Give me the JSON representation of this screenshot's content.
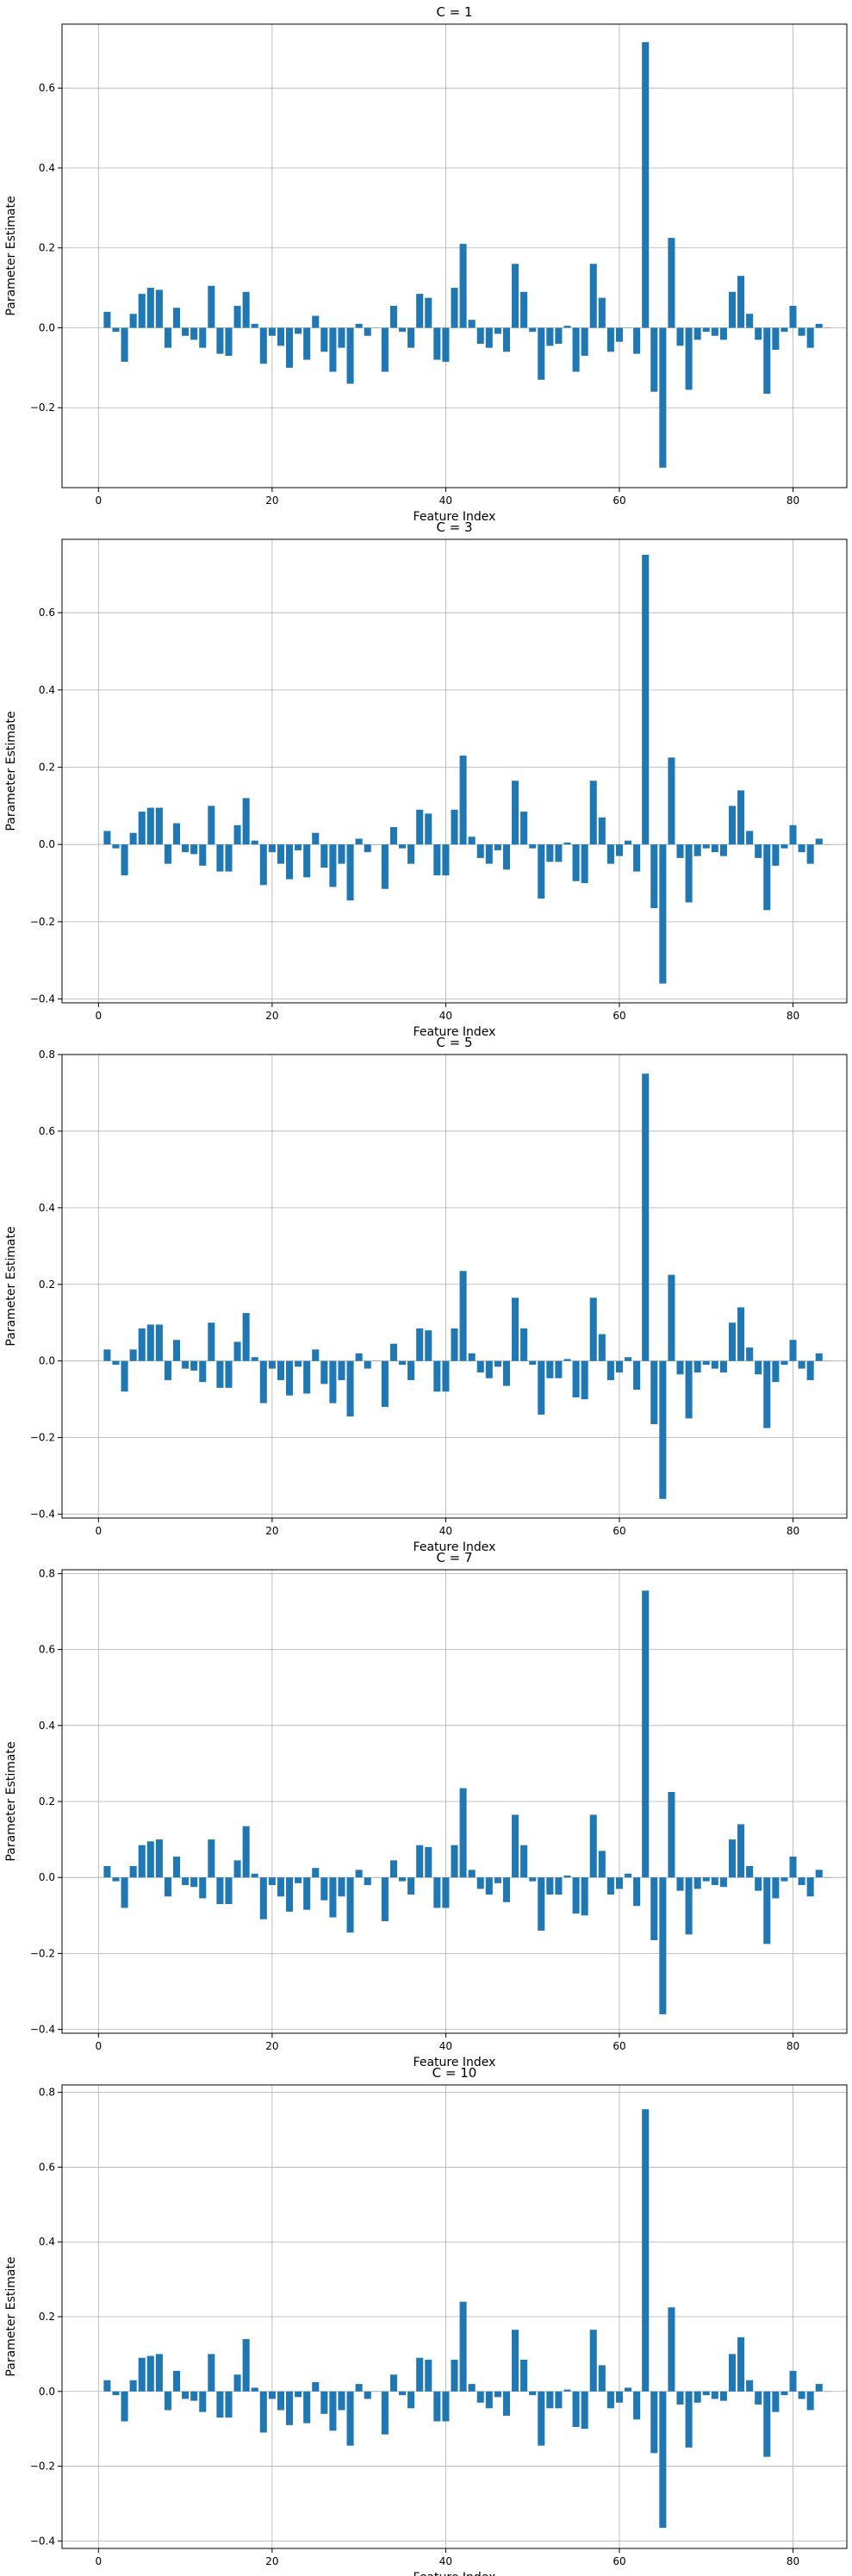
{
  "figure": {
    "bar_color": "#1f77b4",
    "grid_color": "#b0b0b0"
  },
  "chart_data": [
    {
      "type": "bar",
      "title": "C = 1",
      "xlabel": "Feature Index",
      "ylabel": "Parameter Estimate",
      "xlim": [
        -4.2,
        86.2
      ],
      "ylim": [
        -0.4,
        0.76
      ],
      "xticks": [
        0,
        20,
        40,
        60,
        80
      ],
      "yticks": [
        -0.2,
        0.0,
        0.2,
        0.4,
        0.6
      ],
      "ytick_labels": [
        "−0.2",
        "0.0",
        "0.2",
        "0.4",
        "0.6"
      ],
      "grid": true,
      "x": [
        1,
        2,
        3,
        4,
        5,
        6,
        7,
        8,
        9,
        10,
        11,
        12,
        13,
        14,
        15,
        16,
        17,
        18,
        19,
        20,
        21,
        22,
        23,
        24,
        25,
        26,
        27,
        28,
        29,
        30,
        31,
        32,
        33,
        34,
        35,
        36,
        37,
        38,
        39,
        40,
        41,
        42,
        43,
        44,
        45,
        46,
        47,
        48,
        49,
        50,
        51,
        52,
        53,
        54,
        55,
        56,
        57,
        58,
        59,
        60,
        61,
        62,
        63,
        64,
        65,
        66,
        67,
        68,
        69,
        70,
        71,
        72,
        73,
        74,
        75,
        76,
        77,
        78,
        79,
        80,
        81,
        82,
        83,
        84
      ],
      "values": [
        0.04,
        -0.01,
        -0.085,
        0.035,
        0.085,
        0.1,
        0.095,
        -0.05,
        0.05,
        -0.02,
        -0.03,
        -0.05,
        0.105,
        -0.065,
        -0.07,
        0.055,
        0.09,
        0.01,
        -0.09,
        -0.02,
        -0.045,
        -0.1,
        -0.015,
        -0.08,
        0.03,
        -0.06,
        -0.11,
        -0.05,
        -0.14,
        0.01,
        -0.02,
        0.0,
        -0.11,
        0.055,
        -0.01,
        -0.05,
        0.085,
        0.075,
        -0.08,
        -0.085,
        0.1,
        0.21,
        0.02,
        -0.04,
        -0.05,
        -0.015,
        -0.06,
        0.16,
        0.09,
        -0.01,
        -0.13,
        -0.045,
        -0.04,
        0.005,
        -0.11,
        -0.07,
        0.16,
        0.075,
        -0.06,
        -0.035,
        0.0,
        -0.065,
        0.715,
        -0.16,
        -0.35,
        0.225,
        -0.045,
        -0.155,
        -0.03,
        -0.01,
        -0.02,
        -0.03,
        0.09,
        0.13,
        0.035,
        -0.03,
        -0.165,
        -0.055,
        -0.01,
        0.055,
        -0.02,
        -0.05,
        0.01,
        0.0
      ]
    },
    {
      "type": "bar",
      "title": "C = 3",
      "xlabel": "Feature Index",
      "ylabel": "Parameter Estimate",
      "xlim": [
        -4.2,
        86.2
      ],
      "ylim": [
        -0.41,
        0.79
      ],
      "xticks": [
        0,
        20,
        40,
        60,
        80
      ],
      "yticks": [
        -0.4,
        -0.2,
        0.0,
        0.2,
        0.4,
        0.6
      ],
      "ytick_labels": [
        "−0.4",
        "−0.2",
        "0.0",
        "0.2",
        "0.4",
        "0.6"
      ],
      "grid": true,
      "x": [
        1,
        2,
        3,
        4,
        5,
        6,
        7,
        8,
        9,
        10,
        11,
        12,
        13,
        14,
        15,
        16,
        17,
        18,
        19,
        20,
        21,
        22,
        23,
        24,
        25,
        26,
        27,
        28,
        29,
        30,
        31,
        32,
        33,
        34,
        35,
        36,
        37,
        38,
        39,
        40,
        41,
        42,
        43,
        44,
        45,
        46,
        47,
        48,
        49,
        50,
        51,
        52,
        53,
        54,
        55,
        56,
        57,
        58,
        59,
        60,
        61,
        62,
        63,
        64,
        65,
        66,
        67,
        68,
        69,
        70,
        71,
        72,
        73,
        74,
        75,
        76,
        77,
        78,
        79,
        80,
        81,
        82,
        83,
        84
      ],
      "values": [
        0.035,
        -0.01,
        -0.08,
        0.03,
        0.085,
        0.095,
        0.095,
        -0.05,
        0.055,
        -0.02,
        -0.025,
        -0.055,
        0.1,
        -0.07,
        -0.07,
        0.05,
        0.12,
        0.01,
        -0.105,
        -0.02,
        -0.05,
        -0.09,
        -0.015,
        -0.085,
        0.03,
        -0.06,
        -0.11,
        -0.05,
        -0.145,
        0.015,
        -0.02,
        0.0,
        -0.115,
        0.045,
        -0.01,
        -0.05,
        0.09,
        0.08,
        -0.08,
        -0.08,
        0.09,
        0.23,
        0.02,
        -0.035,
        -0.05,
        -0.015,
        -0.065,
        0.165,
        0.085,
        -0.01,
        -0.14,
        -0.045,
        -0.045,
        0.005,
        -0.095,
        -0.1,
        0.165,
        0.07,
        -0.05,
        -0.03,
        0.01,
        -0.07,
        0.75,
        -0.165,
        -0.36,
        0.225,
        -0.035,
        -0.15,
        -0.03,
        -0.01,
        -0.02,
        -0.03,
        0.1,
        0.14,
        0.035,
        -0.035,
        -0.17,
        -0.055,
        -0.01,
        0.05,
        -0.02,
        -0.05,
        0.015,
        0.0
      ]
    },
    {
      "type": "bar",
      "title": "C = 5",
      "xlabel": "Feature Index",
      "ylabel": "Parameter Estimate",
      "xlim": [
        -4.2,
        86.2
      ],
      "ylim": [
        -0.41,
        0.8
      ],
      "xticks": [
        0,
        20,
        40,
        60,
        80
      ],
      "yticks": [
        -0.4,
        -0.2,
        0.0,
        0.2,
        0.4,
        0.6,
        0.8
      ],
      "ytick_labels": [
        "−0.4",
        "−0.2",
        "0.0",
        "0.2",
        "0.4",
        "0.6",
        "0.8"
      ],
      "grid": true,
      "x": [
        1,
        2,
        3,
        4,
        5,
        6,
        7,
        8,
        9,
        10,
        11,
        12,
        13,
        14,
        15,
        16,
        17,
        18,
        19,
        20,
        21,
        22,
        23,
        24,
        25,
        26,
        27,
        28,
        29,
        30,
        31,
        32,
        33,
        34,
        35,
        36,
        37,
        38,
        39,
        40,
        41,
        42,
        43,
        44,
        45,
        46,
        47,
        48,
        49,
        50,
        51,
        52,
        53,
        54,
        55,
        56,
        57,
        58,
        59,
        60,
        61,
        62,
        63,
        64,
        65,
        66,
        67,
        68,
        69,
        70,
        71,
        72,
        73,
        74,
        75,
        76,
        77,
        78,
        79,
        80,
        81,
        82,
        83,
        84
      ],
      "values": [
        0.03,
        -0.01,
        -0.08,
        0.03,
        0.085,
        0.095,
        0.095,
        -0.05,
        0.055,
        -0.02,
        -0.025,
        -0.055,
        0.1,
        -0.07,
        -0.07,
        0.05,
        0.125,
        0.01,
        -0.11,
        -0.02,
        -0.05,
        -0.09,
        -0.015,
        -0.085,
        0.03,
        -0.06,
        -0.11,
        -0.05,
        -0.145,
        0.02,
        -0.02,
        0.0,
        -0.12,
        0.045,
        -0.01,
        -0.05,
        0.085,
        0.08,
        -0.08,
        -0.08,
        0.085,
        0.235,
        0.02,
        -0.03,
        -0.045,
        -0.015,
        -0.065,
        0.165,
        0.085,
        -0.01,
        -0.14,
        -0.045,
        -0.045,
        0.005,
        -0.095,
        -0.1,
        0.165,
        0.07,
        -0.05,
        -0.03,
        0.01,
        -0.075,
        0.75,
        -0.165,
        -0.36,
        0.225,
        -0.035,
        -0.15,
        -0.03,
        -0.01,
        -0.02,
        -0.03,
        0.1,
        0.14,
        0.035,
        -0.035,
        -0.175,
        -0.055,
        -0.01,
        0.055,
        -0.02,
        -0.05,
        0.02,
        0.0
      ]
    },
    {
      "type": "bar",
      "title": "C = 7",
      "xlabel": "Feature Index",
      "ylabel": "Parameter Estimate",
      "xlim": [
        -4.2,
        86.2
      ],
      "ylim": [
        -0.41,
        0.81
      ],
      "xticks": [
        0,
        20,
        40,
        60,
        80
      ],
      "yticks": [
        -0.4,
        -0.2,
        0.0,
        0.2,
        0.4,
        0.6,
        0.8
      ],
      "ytick_labels": [
        "−0.4",
        "−0.2",
        "0.0",
        "0.2",
        "0.4",
        "0.6",
        "0.8"
      ],
      "grid": true,
      "x": [
        1,
        2,
        3,
        4,
        5,
        6,
        7,
        8,
        9,
        10,
        11,
        12,
        13,
        14,
        15,
        16,
        17,
        18,
        19,
        20,
        21,
        22,
        23,
        24,
        25,
        26,
        27,
        28,
        29,
        30,
        31,
        32,
        33,
        34,
        35,
        36,
        37,
        38,
        39,
        40,
        41,
        42,
        43,
        44,
        45,
        46,
        47,
        48,
        49,
        50,
        51,
        52,
        53,
        54,
        55,
        56,
        57,
        58,
        59,
        60,
        61,
        62,
        63,
        64,
        65,
        66,
        67,
        68,
        69,
        70,
        71,
        72,
        73,
        74,
        75,
        76,
        77,
        78,
        79,
        80,
        81,
        82,
        83,
        84
      ],
      "values": [
        0.03,
        -0.01,
        -0.08,
        0.03,
        0.085,
        0.095,
        0.1,
        -0.05,
        0.055,
        -0.02,
        -0.025,
        -0.055,
        0.1,
        -0.07,
        -0.07,
        0.045,
        0.135,
        0.01,
        -0.11,
        -0.02,
        -0.05,
        -0.09,
        -0.015,
        -0.085,
        0.025,
        -0.06,
        -0.105,
        -0.05,
        -0.145,
        0.02,
        -0.02,
        0.0,
        -0.115,
        0.045,
        -0.01,
        -0.045,
        0.085,
        0.08,
        -0.08,
        -0.08,
        0.085,
        0.235,
        0.02,
        -0.03,
        -0.045,
        -0.015,
        -0.065,
        0.165,
        0.085,
        -0.01,
        -0.14,
        -0.045,
        -0.045,
        0.005,
        -0.095,
        -0.1,
        0.165,
        0.07,
        -0.045,
        -0.03,
        0.01,
        -0.075,
        0.755,
        -0.165,
        -0.36,
        0.225,
        -0.035,
        -0.15,
        -0.03,
        -0.01,
        -0.02,
        -0.025,
        0.1,
        0.14,
        0.03,
        -0.035,
        -0.175,
        -0.055,
        -0.01,
        0.055,
        -0.02,
        -0.05,
        0.02,
        0.0
      ]
    },
    {
      "type": "bar",
      "title": "C = 10",
      "xlabel": "Feature Index",
      "ylabel": "Parameter Estimate",
      "xlim": [
        -4.2,
        86.2
      ],
      "ylim": [
        -0.42,
        0.82
      ],
      "xticks": [
        0,
        20,
        40,
        60,
        80
      ],
      "yticks": [
        -0.4,
        -0.2,
        0.0,
        0.2,
        0.4,
        0.6,
        0.8
      ],
      "ytick_labels": [
        "−0.4",
        "−0.2",
        "0.0",
        "0.2",
        "0.4",
        "0.6",
        "0.8"
      ],
      "grid": true,
      "x": [
        1,
        2,
        3,
        4,
        5,
        6,
        7,
        8,
        9,
        10,
        11,
        12,
        13,
        14,
        15,
        16,
        17,
        18,
        19,
        20,
        21,
        22,
        23,
        24,
        25,
        26,
        27,
        28,
        29,
        30,
        31,
        32,
        33,
        34,
        35,
        36,
        37,
        38,
        39,
        40,
        41,
        42,
        43,
        44,
        45,
        46,
        47,
        48,
        49,
        50,
        51,
        52,
        53,
        54,
        55,
        56,
        57,
        58,
        59,
        60,
        61,
        62,
        63,
        64,
        65,
        66,
        67,
        68,
        69,
        70,
        71,
        72,
        73,
        74,
        75,
        76,
        77,
        78,
        79,
        80,
        81,
        82,
        83,
        84
      ],
      "values": [
        0.03,
        -0.01,
        -0.08,
        0.03,
        0.09,
        0.095,
        0.1,
        -0.05,
        0.055,
        -0.02,
        -0.025,
        -0.055,
        0.1,
        -0.07,
        -0.07,
        0.045,
        0.14,
        0.01,
        -0.11,
        -0.02,
        -0.05,
        -0.09,
        -0.015,
        -0.085,
        0.025,
        -0.06,
        -0.105,
        -0.05,
        -0.145,
        0.02,
        -0.02,
        0.0,
        -0.115,
        0.045,
        -0.01,
        -0.045,
        0.09,
        0.085,
        -0.08,
        -0.08,
        0.085,
        0.24,
        0.02,
        -0.03,
        -0.045,
        -0.015,
        -0.065,
        0.165,
        0.085,
        -0.01,
        -0.145,
        -0.045,
        -0.045,
        0.005,
        -0.095,
        -0.1,
        0.165,
        0.07,
        -0.045,
        -0.03,
        0.01,
        -0.075,
        0.755,
        -0.165,
        -0.365,
        0.225,
        -0.035,
        -0.15,
        -0.03,
        -0.01,
        -0.02,
        -0.025,
        0.1,
        0.145,
        0.03,
        -0.035,
        -0.175,
        -0.055,
        -0.01,
        0.055,
        -0.02,
        -0.05,
        0.02,
        0.0
      ]
    }
  ]
}
